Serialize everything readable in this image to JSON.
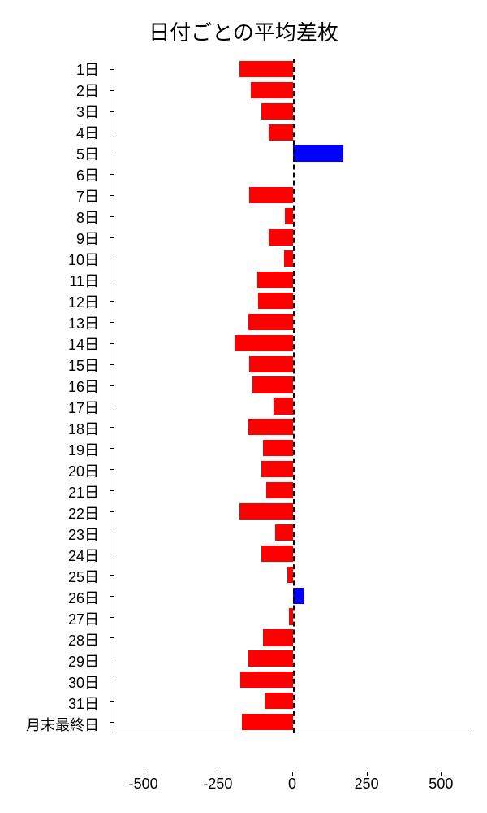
{
  "chart": {
    "type": "bar",
    "orientation": "horizontal",
    "title": "日付ごとの平均差枚",
    "title_fontsize": 26,
    "background_color": "#ffffff",
    "text_color": "#000000",
    "positive_color": "#0000ff",
    "negative_color": "#ff0000",
    "zero_line_color": "#000000",
    "zero_line_style": "dashed",
    "xlim": [
      -600,
      600
    ],
    "xticks": [
      -500,
      -250,
      0,
      250,
      500
    ],
    "xtick_labels": [
      "-500",
      "-250",
      "0",
      "250",
      "500"
    ],
    "axis_fontsize": 18,
    "label_fontsize": 18,
    "bar_height_ratio": 0.78,
    "categories": [
      "1日",
      "2日",
      "3日",
      "4日",
      "5日",
      "6日",
      "7日",
      "8日",
      "9日",
      "10日",
      "11日",
      "12日",
      "13日",
      "14日",
      "15日",
      "16日",
      "17日",
      "18日",
      "19日",
      "20日",
      "21日",
      "22日",
      "23日",
      "24日",
      "25日",
      "26日",
      "27日",
      "28日",
      "29日",
      "30日",
      "31日",
      "月末最終日"
    ],
    "values": [
      -180,
      -140,
      -105,
      -80,
      170,
      0,
      -145,
      -25,
      -80,
      -30,
      -120,
      -115,
      -150,
      -195,
      -145,
      -135,
      -65,
      -150,
      -100,
      -105,
      -90,
      -180,
      -60,
      -105,
      -18,
      40,
      -12,
      -100,
      -150,
      -175,
      -95,
      -170
    ]
  }
}
